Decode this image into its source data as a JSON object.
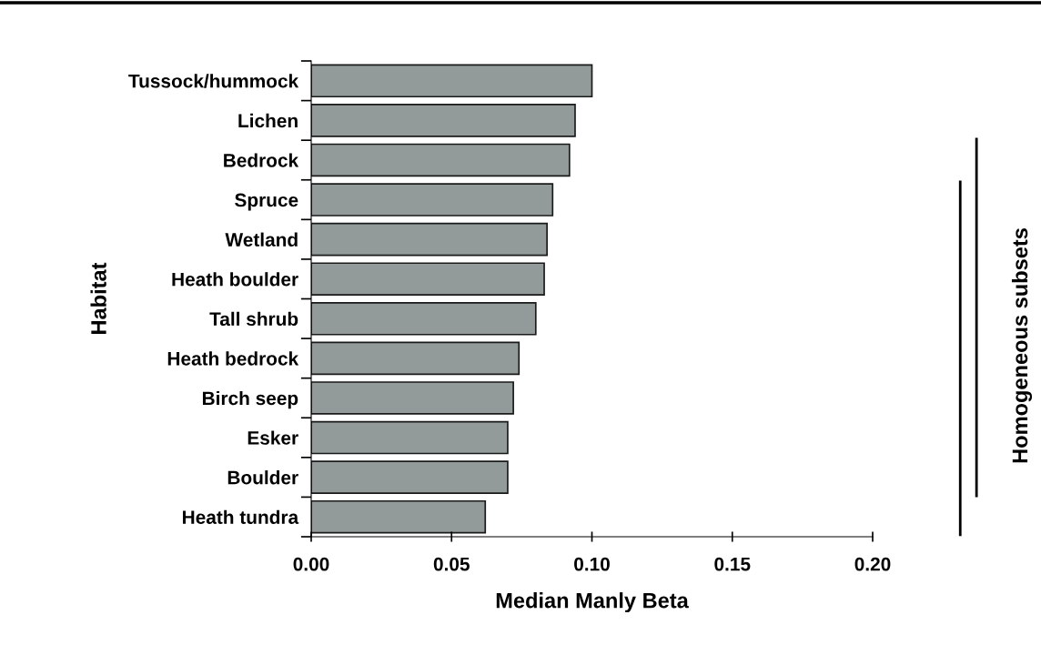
{
  "chart_data": {
    "type": "bar",
    "orientation": "horizontal",
    "xlabel": "Median Manly Beta",
    "ylabel": "Habitat",
    "categories": [
      "Tussock/hummock",
      "Lichen",
      "Bedrock",
      "Spruce",
      "Wetland",
      "Heath boulder",
      "Tall shrub",
      "Heath bedrock",
      "Birch seep",
      "Esker",
      "Boulder",
      "Heath tundra"
    ],
    "values": [
      0.1,
      0.094,
      0.092,
      0.086,
      0.084,
      0.083,
      0.08,
      0.074,
      0.072,
      0.07,
      0.07,
      0.062
    ],
    "color": "#929a9a",
    "xlim": [
      0,
      0.2
    ],
    "xticks": [
      {
        "value": 0,
        "label": "0.00"
      },
      {
        "value": 0.05,
        "label": "0.05"
      },
      {
        "value": 0.1,
        "label": "0.10"
      },
      {
        "value": 0.15,
        "label": "0.15"
      },
      {
        "value": 0.2,
        "label": "0.20"
      }
    ],
    "grid": false,
    "annotations": [
      "Homogeneous subsets"
    ]
  }
}
